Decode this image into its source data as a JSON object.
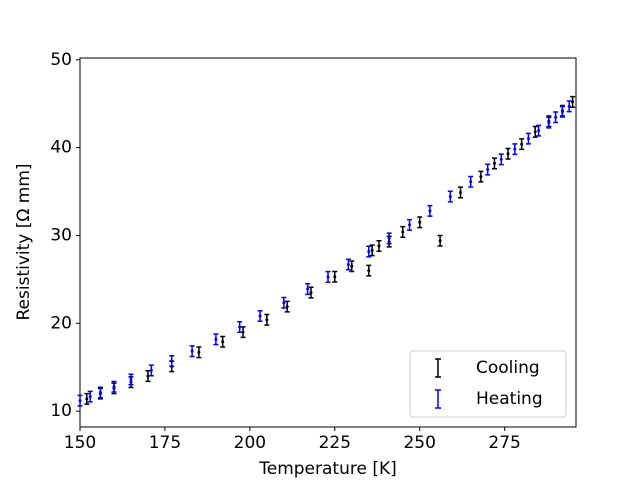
{
  "chart_data": {
    "type": "errorbar",
    "x_label": "Temperature [K]",
    "y_label": "Resistivity [Ω mm]",
    "xlim": [
      150,
      296
    ],
    "ylim": [
      8.2,
      50.2
    ],
    "xticks": [
      150,
      175,
      200,
      225,
      250,
      275
    ],
    "yticks": [
      10,
      20,
      30,
      40,
      50
    ],
    "legend": "lower right",
    "series": [
      {
        "name": "Cooling",
        "color": "#000000",
        "yerr": 0.6,
        "x": [
          152,
          156,
          160,
          165,
          170,
          177,
          185,
          192,
          198,
          205,
          211,
          218,
          225,
          230,
          235,
          236,
          238,
          241,
          245,
          250,
          256,
          262,
          268,
          272,
          276,
          280,
          284,
          288,
          292,
          295
        ],
        "values": [
          11.4,
          12.0,
          12.6,
          13.3,
          14.0,
          15.1,
          16.7,
          17.9,
          19.0,
          20.4,
          21.9,
          23.5,
          25.3,
          26.5,
          26.0,
          28.3,
          28.8,
          29.3,
          30.4,
          31.5,
          29.4,
          34.9,
          36.7,
          38.2,
          39.3,
          40.4,
          41.8,
          43.0,
          44.2,
          45.2
        ]
      },
      {
        "name": "Heating",
        "color": "#0000ff",
        "yerr": 0.6,
        "x": [
          150,
          153,
          156,
          160,
          165,
          171,
          177,
          183,
          190,
          197,
          203,
          210,
          217,
          223,
          229,
          235,
          241,
          247,
          253,
          259,
          265,
          270,
          274,
          278,
          282,
          285,
          288,
          290,
          292,
          294
        ],
        "values": [
          11.2,
          11.66,
          12.13,
          12.78,
          13.61,
          14.64,
          15.71,
          16.83,
          18.18,
          19.58,
          20.83,
          22.34,
          23.9,
          25.28,
          26.7,
          28.17,
          29.67,
          31.21,
          32.8,
          34.43,
          36.11,
          37.5,
          38.66,
          39.83,
          41.02,
          41.93,
          42.84,
          43.46,
          44.08,
          44.7
        ]
      }
    ]
  }
}
